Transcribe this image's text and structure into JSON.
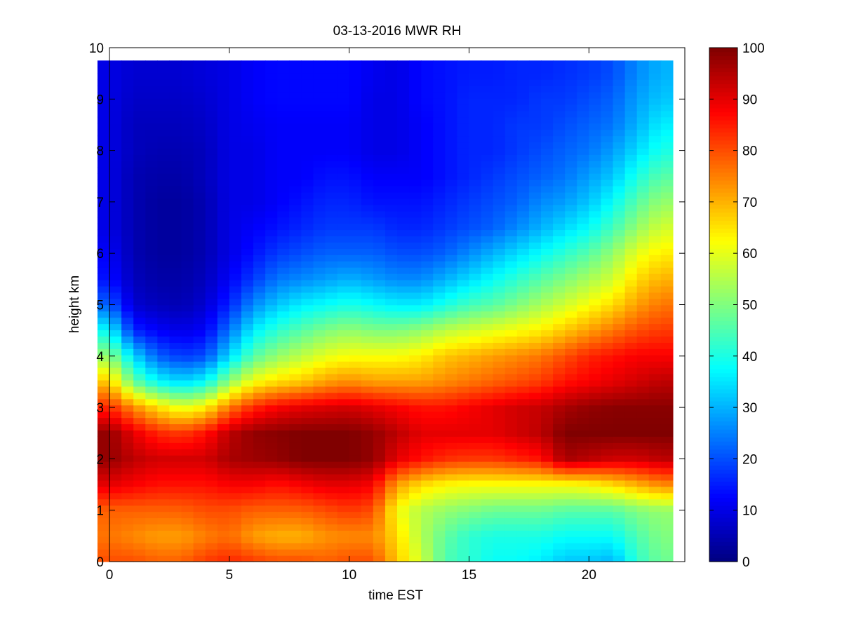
{
  "chart_data": {
    "type": "heatmap",
    "title": "03-13-2016 MWR RH",
    "xlabel": "time EST",
    "ylabel": "height km",
    "xlim": [
      0,
      24
    ],
    "ylim": [
      0,
      10
    ],
    "xticks": [
      0,
      5,
      10,
      15,
      20
    ],
    "yticks": [
      0,
      1,
      2,
      3,
      4,
      5,
      6,
      7,
      8,
      9,
      10
    ],
    "colorbar": {
      "colormap": "jet",
      "range": [
        0,
        100
      ],
      "ticks": [
        0,
        10,
        20,
        30,
        40,
        50,
        60,
        70,
        80,
        90,
        100
      ]
    },
    "x_hours": [
      0,
      1,
      2,
      3,
      4,
      5,
      6,
      7,
      8,
      9,
      10,
      11,
      12,
      13,
      14,
      15,
      16,
      17,
      18,
      19,
      20,
      21,
      22,
      23
    ],
    "y_km": [
      0.0,
      0.5,
      1.0,
      1.5,
      2.0,
      2.5,
      3.0,
      3.5,
      4.0,
      4.5,
      5.0,
      5.5,
      6.0,
      6.5,
      7.0,
      7.5,
      8.0,
      8.5,
      9.0,
      9.5
    ],
    "rh_percent": [
      [
        80,
        80,
        78,
        78,
        82,
        84,
        82,
        80,
        80,
        78,
        80,
        80,
        68,
        58,
        45,
        42,
        38,
        38,
        36,
        32,
        32,
        30,
        42,
        48
      ],
      [
        76,
        74,
        72,
        72,
        75,
        77,
        72,
        70,
        70,
        73,
        74,
        74,
        66,
        55,
        47,
        42,
        40,
        40,
        40,
        38,
        38,
        38,
        45,
        50
      ],
      [
        78,
        78,
        78,
        78,
        80,
        80,
        78,
        78,
        78,
        80,
        82,
        80,
        62,
        55,
        52,
        50,
        48,
        48,
        48,
        46,
        46,
        46,
        50,
        52
      ],
      [
        90,
        88,
        86,
        86,
        86,
        88,
        88,
        86,
        88,
        90,
        90,
        88,
        72,
        66,
        63,
        62,
        62,
        62,
        62,
        62,
        63,
        66,
        70,
        74
      ],
      [
        98,
        94,
        92,
        92,
        92,
        96,
        97,
        98,
        100,
        100,
        100,
        98,
        90,
        86,
        83,
        82,
        82,
        84,
        86,
        96,
        94,
        92,
        92,
        94
      ],
      [
        98,
        90,
        84,
        82,
        86,
        94,
        98,
        99,
        100,
        100,
        100,
        98,
        94,
        90,
        90,
        90,
        90,
        92,
        94,
        100,
        100,
        100,
        100,
        100
      ],
      [
        84,
        74,
        66,
        60,
        64,
        76,
        84,
        88,
        90,
        91,
        92,
        90,
        88,
        86,
        86,
        88,
        90,
        92,
        93,
        96,
        98,
        99,
        99,
        99
      ],
      [
        68,
        48,
        38,
        34,
        38,
        52,
        62,
        66,
        68,
        72,
        74,
        72,
        72,
        72,
        74,
        76,
        78,
        80,
        82,
        86,
        88,
        90,
        92,
        94
      ],
      [
        52,
        34,
        22,
        18,
        20,
        34,
        46,
        52,
        56,
        60,
        62,
        62,
        62,
        64,
        68,
        70,
        72,
        74,
        76,
        80,
        84,
        86,
        88,
        88
      ],
      [
        38,
        16,
        12,
        10,
        12,
        24,
        36,
        42,
        46,
        50,
        52,
        50,
        50,
        52,
        56,
        58,
        60,
        62,
        64,
        68,
        72,
        76,
        80,
        82
      ],
      [
        22,
        8,
        6,
        5,
        8,
        16,
        26,
        32,
        36,
        38,
        40,
        38,
        36,
        36,
        40,
        44,
        46,
        50,
        54,
        58,
        62,
        66,
        72,
        76
      ],
      [
        14,
        6,
        4,
        4,
        6,
        12,
        18,
        24,
        26,
        28,
        30,
        28,
        26,
        26,
        30,
        34,
        38,
        42,
        46,
        50,
        54,
        58,
        66,
        70
      ],
      [
        12,
        5,
        3,
        3,
        5,
        10,
        14,
        18,
        20,
        22,
        22,
        22,
        20,
        20,
        22,
        26,
        30,
        34,
        38,
        42,
        46,
        52,
        60,
        64
      ],
      [
        10,
        5,
        3,
        3,
        5,
        10,
        12,
        14,
        16,
        18,
        18,
        18,
        16,
        16,
        18,
        20,
        22,
        26,
        30,
        34,
        38,
        44,
        52,
        58
      ],
      [
        10,
        5,
        3,
        3,
        5,
        10,
        10,
        12,
        14,
        16,
        16,
        14,
        14,
        14,
        16,
        18,
        20,
        22,
        26,
        28,
        32,
        38,
        46,
        52
      ],
      [
        10,
        5,
        4,
        4,
        6,
        10,
        10,
        12,
        12,
        14,
        14,
        12,
        12,
        12,
        14,
        16,
        18,
        20,
        22,
        24,
        28,
        32,
        40,
        46
      ],
      [
        10,
        6,
        5,
        5,
        6,
        10,
        10,
        12,
        12,
        12,
        12,
        10,
        10,
        12,
        14,
        16,
        16,
        18,
        20,
        22,
        24,
        28,
        34,
        40
      ],
      [
        10,
        6,
        6,
        6,
        7,
        10,
        11,
        12,
        12,
        12,
        12,
        10,
        10,
        12,
        14,
        16,
        16,
        18,
        18,
        20,
        22,
        24,
        30,
        36
      ],
      [
        10,
        7,
        7,
        7,
        8,
        10,
        12,
        13,
        13,
        13,
        13,
        10,
        10,
        13,
        14,
        16,
        16,
        16,
        18,
        18,
        20,
        22,
        28,
        32
      ],
      [
        10,
        8,
        8,
        8,
        9,
        10,
        12,
        13,
        13,
        13,
        13,
        11,
        10,
        13,
        14,
        15,
        15,
        16,
        16,
        17,
        18,
        20,
        26,
        30
      ]
    ]
  }
}
